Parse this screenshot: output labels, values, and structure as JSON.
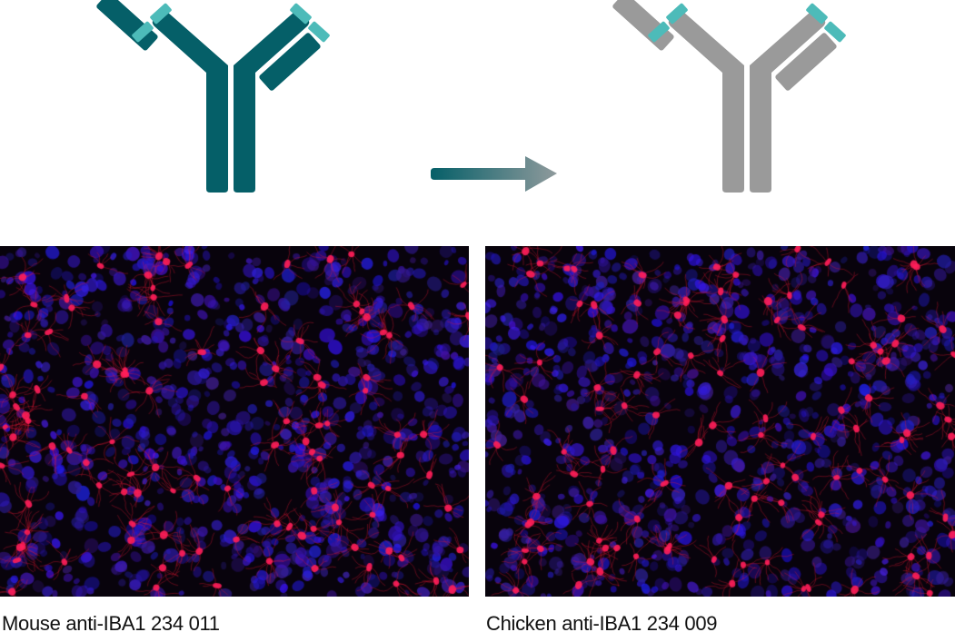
{
  "figure": {
    "left": {
      "caption": "Mouse anti-IBA1 234 011",
      "antibody_icon": "antibody-icon",
      "antibody_color": "#055f68"
    },
    "right": {
      "caption": "Chicken anti-IBA1 234 009",
      "antibody_icon": "antibody-icon",
      "antibody_color": "#9a9a9a"
    },
    "tip_color": "#4dbbb9",
    "arrow_icon": "arrow-right-icon",
    "arrow_gradient": [
      "#055f68",
      "#8f9a9c"
    ],
    "stain_colors": {
      "microglia": "#ff1a3c",
      "nuclei": "#2a1fd0"
    }
  }
}
